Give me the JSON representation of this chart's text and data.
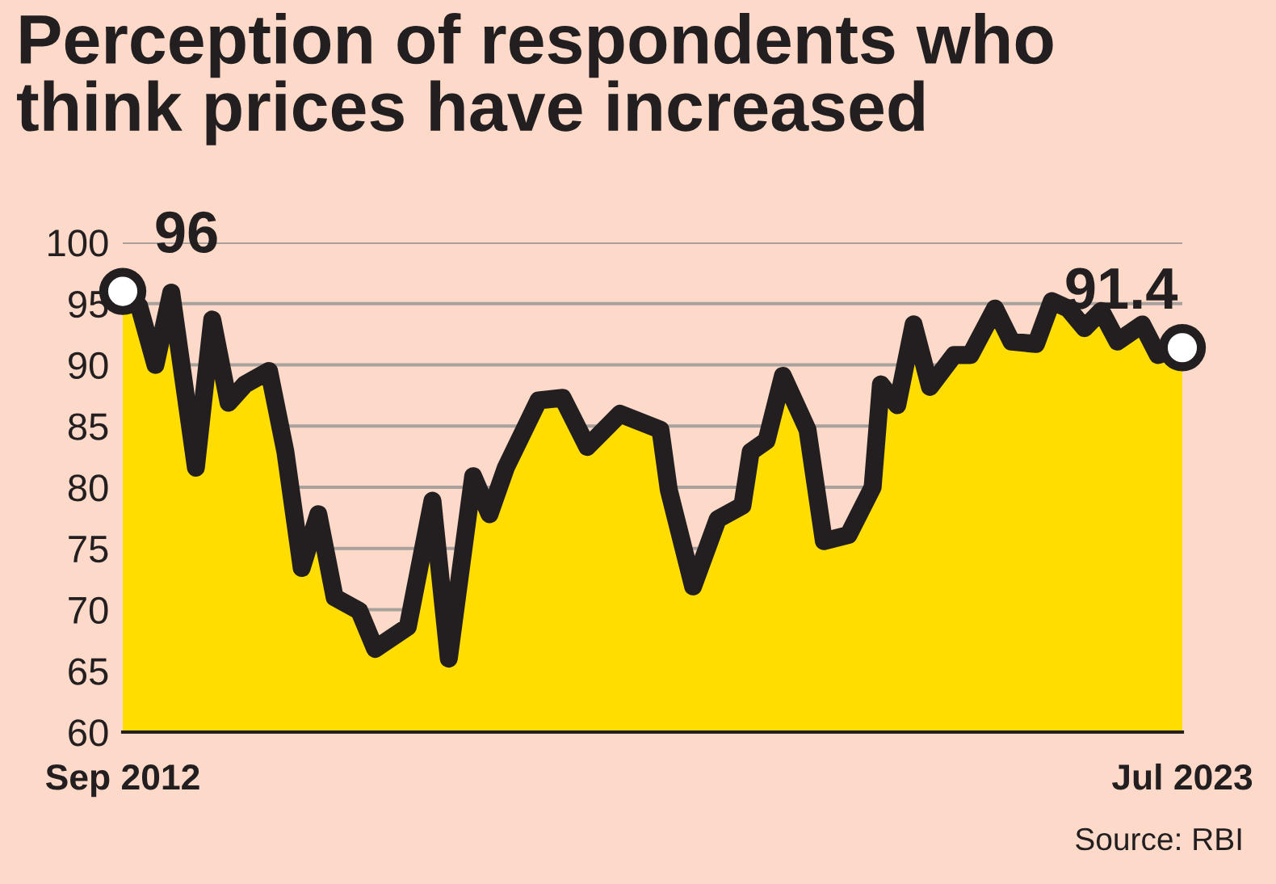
{
  "chart_data": {
    "type": "area",
    "title": "Perception of respondents who\nthink prices have increased",
    "x": [
      "2012-09",
      "2012-11",
      "2013-01",
      "2013-03",
      "2013-06",
      "2013-08",
      "2013-10",
      "2013-12",
      "2014-03",
      "2014-05",
      "2014-07",
      "2014-09",
      "2014-11",
      "2015-02",
      "2015-04",
      "2015-08",
      "2015-11",
      "2016-01",
      "2016-04",
      "2016-06",
      "2016-08",
      "2016-12",
      "2017-03",
      "2017-06",
      "2017-10",
      "2018-03",
      "2018-04",
      "2018-07",
      "2018-10",
      "2019-01",
      "2019-02",
      "2019-04",
      "2019-06",
      "2019-09",
      "2019-11",
      "2020-02",
      "2020-05",
      "2020-06",
      "2020-08",
      "2020-10",
      "2020-12",
      "2021-03",
      "2021-05",
      "2021-08",
      "2021-10",
      "2022-01",
      "2022-03",
      "2022-05",
      "2022-07",
      "2022-09",
      "2022-11",
      "2023-02",
      "2023-04",
      "2023-07"
    ],
    "series": [
      {
        "color": "#ffdd00",
        "values": [
          96,
          94.8,
          90,
          95.9,
          81.6,
          93.7,
          86.9,
          88.4,
          89.5,
          82.9,
          73.4,
          77.8,
          71,
          69.9,
          66.8,
          68.6,
          78.9,
          66,
          80.9,
          77.8,
          81.6,
          87.1,
          87.3,
          83.3,
          86,
          84.7,
          79.8,
          71.9,
          77.4,
          78.5,
          82.9,
          83.8,
          89.1,
          84.7,
          75.6,
          76.1,
          80,
          88.4,
          86.7,
          93.3,
          88.2,
          90.8,
          90.8,
          94.6,
          91.9,
          91.7,
          95.2,
          94.6,
          93,
          94.4,
          91.9,
          93.3,
          90.8,
          91.4
        ]
      }
    ],
    "xlim": [
      "2012-09",
      "2023-07"
    ],
    "xticks": [
      {
        "value": "2012-09",
        "label": "Sep 2012"
      },
      {
        "value": "2023-07",
        "label": "Jul 2023"
      }
    ],
    "ylim": [
      60,
      100
    ],
    "yticks": [
      60,
      65,
      70,
      75,
      80,
      85,
      90,
      95,
      100
    ],
    "grid": "y",
    "legend": false,
    "line_style": "solid",
    "annotations": [
      {
        "text": "96",
        "x": "2012-09",
        "y": 96
      },
      {
        "text": "91.4",
        "x": "2023-07",
        "y": 91.4
      },
      "Source: RBI"
    ]
  }
}
